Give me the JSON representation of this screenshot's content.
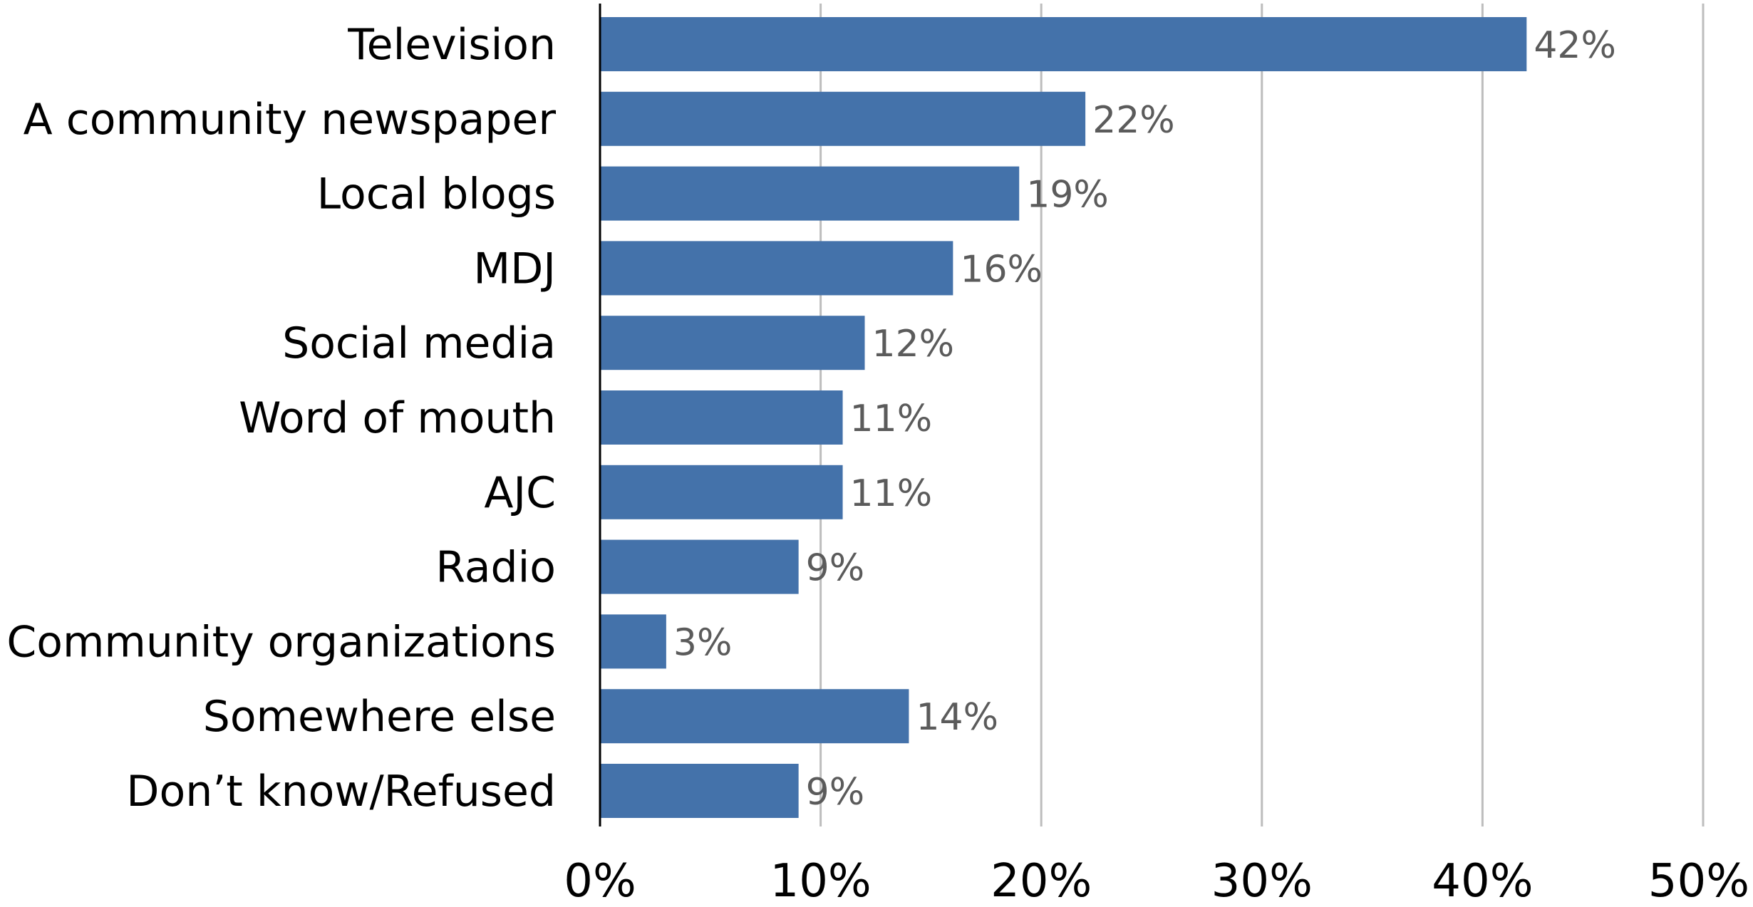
{
  "chart_data": {
    "type": "bar",
    "orientation": "horizontal",
    "categories": [
      "Television",
      "A community newspaper",
      "Local blogs",
      "MDJ",
      "Social media",
      "Word of  mouth",
      "AJC",
      "Radio",
      "Community organizations",
      "Somewhere else",
      "Don’t know/Refused"
    ],
    "values": [
      42,
      22,
      19,
      16,
      12,
      11,
      11,
      9,
      3,
      14,
      9
    ],
    "data_labels": [
      "42%",
      "22%",
      "19%",
      "16%",
      "12%",
      "11%",
      "11%",
      "9%",
      "3%",
      "14%",
      "9%"
    ],
    "x_ticks": [
      "0%",
      "10%",
      "20%",
      "30%",
      "40%",
      "50%"
    ],
    "xlim": [
      0,
      50
    ],
    "title": "",
    "xlabel": "",
    "ylabel": "",
    "grid": "vertical",
    "legend": "none",
    "bar_color": "#4472aa",
    "label_color": "#5b5b5b"
  }
}
